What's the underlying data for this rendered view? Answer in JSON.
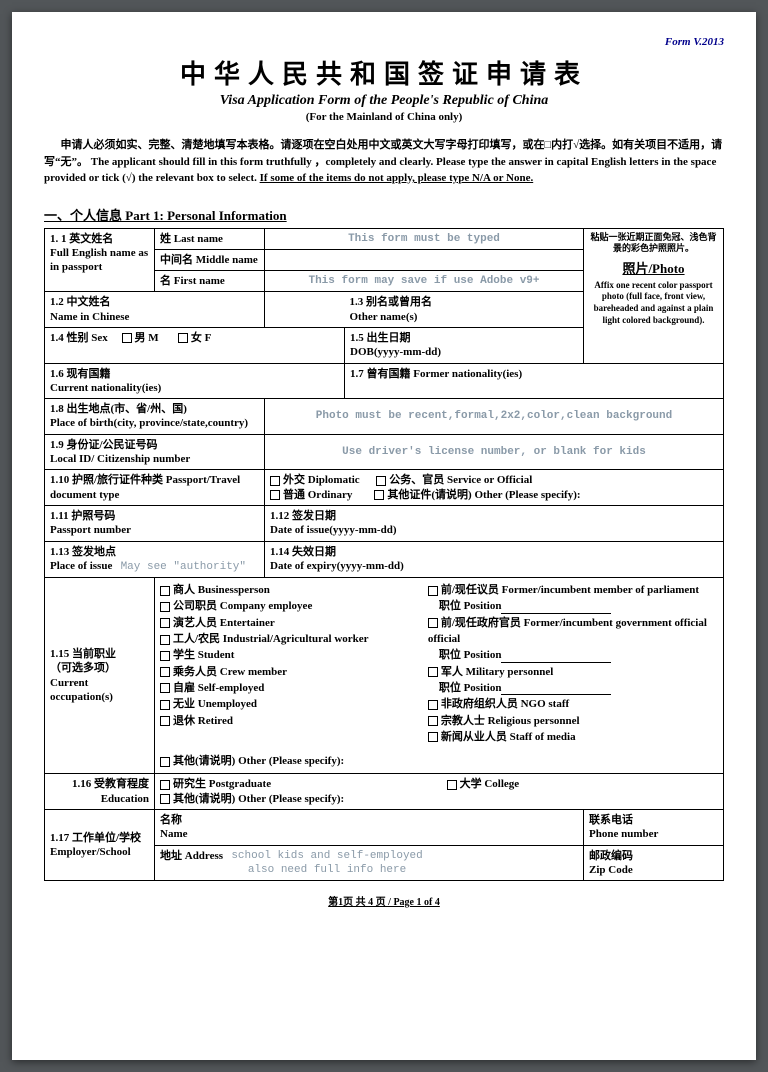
{
  "form_id": "Form V.2013",
  "title_cn": "中华人民共和国签证申请表",
  "title_en": "Visa Application Form of the People's Republic of China",
  "title_sub": "(For the Mainland of China only)",
  "instructions_cn": "申请人必须如实、完整、清楚地填写本表格。请逐项在空白处用中文或英文大写字母打印填写，或在□内打√选择。如有关项目不适用，请写“无”。",
  "instructions_en1": "The applicant should fill in this form truthfully ，completely and clearly. Please type the answer in capital English letters in the space provided or tick (√) the relevant box to select. ",
  "instructions_en2": "If some of the items do not apply, please type N/A or None.",
  "section1": "一、个人信息  Part 1: Personal Information",
  "r11": "1. 1 英文姓名\nFull English name as in passport",
  "r11a": "姓  Last name",
  "r11a_helper": "This form must be typed",
  "r11b": "中间名 Middle name",
  "r11c": "名 First name",
  "r11c_helper": "This form may save if use Adobe v9+",
  "photo_cn": "粘贴一张近期正面免冠、浅色背景的彩色护照照片。",
  "photo_label": "照片/Photo",
  "photo_en": "Affix one recent color passport photo (full face, front view, bareheaded and against a plain light colored background).",
  "r12": "1.2 中文姓名\nName in Chinese",
  "r13": "1.3 别名或曾用名\nOther name(s)",
  "r14": "1.4 性别 Sex",
  "r14m": "男 M",
  "r14f": "女 F",
  "r15": "1.5 出生日期\nDOB(yyyy-mm-dd)",
  "r16": "1.6 现有国籍\nCurrent nationality(ies)",
  "r17": "1.7 曾有国籍 Former nationality(ies)",
  "r18": "1.8 出生地点(市、省/州、国)\nPlace of birth(city, province/state,country)",
  "r18_helper": "Photo must be recent,formal,2x2,color,clean background",
  "r19": "1.9 身份证/公民证号码\nLocal ID/ Citizenship number",
  "r19_helper": "Use driver's license number, or blank for kids",
  "r110": "1.10 护照/旅行证件种类 Passport/Travel document type",
  "r110a": "外交 Diplomatic",
  "r110b": "公务、官员 Service or Official",
  "r110c": "普通 Ordinary",
  "r110d": "其他证件(请说明) Other (Please specify):",
  "r111": "1.11 护照号码\nPassport number",
  "r112": "1.12 签发日期\nDate of issue(yyyy-mm-dd)",
  "r113": "1.13 签发地点\nPlace of issue",
  "r113_helper": "May see \"authority\"",
  "r114": "1.14 失效日期\nDate of expiry(yyyy-mm-dd)",
  "r115": "1.15 当前职业\n（可选多项）\nCurrent occupation(s)",
  "occ_left": [
    "商人 Businessperson",
    "公司职员 Company employee",
    "演艺人员 Entertainer",
    "工人/农民 Industrial/Agricultural worker",
    "学生 Student",
    "乘务人员 Crew member",
    "自雇 Self-employed",
    "无业 Unemployed",
    "退休 Retired"
  ],
  "occ_r1": "前/现任议员 Former/incumbent member of parliament",
  "occ_r2": "前/现任政府官员 Former/incumbent government official",
  "occ_r3": "军人 Military personnel",
  "occ_r4": "非政府组织人员 NGO staff",
  "occ_r5": "宗教人士 Religious personnel",
  "occ_r6": "新闻从业人员 Staff of media",
  "occ_pos": "职位 Position",
  "occ_other": "其他(请说明) Other (Please specify):",
  "r116": "1.16 受教育程度\nEducation",
  "r116a": "研究生 Postgraduate",
  "r116b": "大学 College",
  "r116c": "其他(请说明) Other (Please specify):",
  "r117": "1.17 工作单位/学校\nEmployer/School",
  "r117name": "名称\nName",
  "r117phone": "联系电话\nPhone number",
  "r117addr": "地址 Address",
  "r117addr_helper": "school kids and self-employed\nalso need full info here",
  "r117zip": "邮政编码\nZip Code",
  "footer": "第1页  共 4 页 / Page  1  of 4"
}
